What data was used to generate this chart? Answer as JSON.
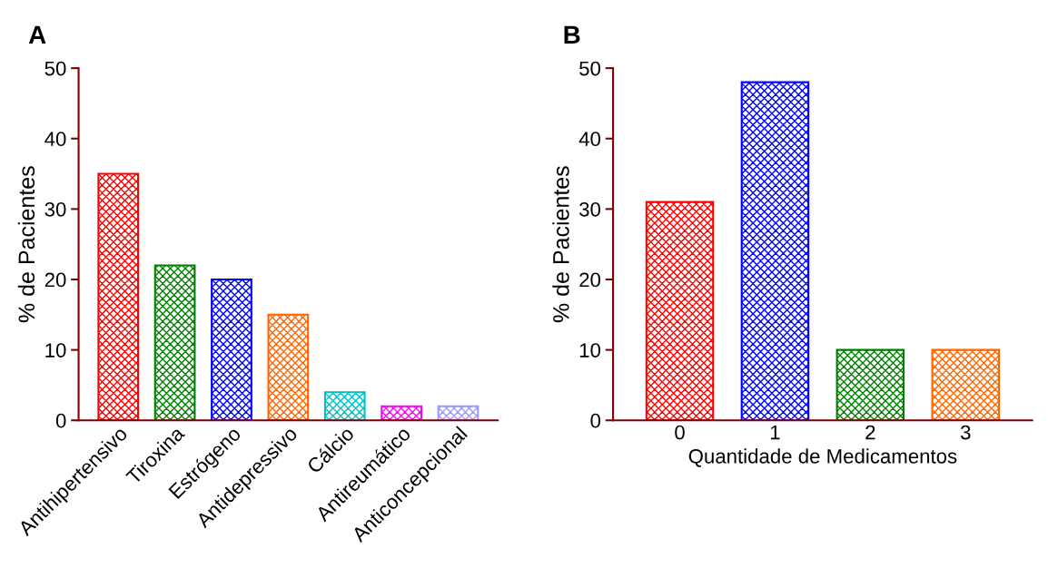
{
  "chart_data": [
    {
      "type": "bar",
      "title": "A",
      "ylabel": "% de Pacientes",
      "categories": [
        "Antihipertensivo",
        "Tiroxina",
        "Estrógeno",
        "Antidepressivo",
        "Cálcio",
        "Antireumático",
        "Anticoncepcional"
      ],
      "values": [
        35,
        22,
        20,
        15,
        4,
        2,
        2
      ],
      "colors": [
        "#ff0000",
        "#008000",
        "#0000ff",
        "#ff6600",
        "#00c0c0",
        "#ff00ff",
        "#9999ff"
      ],
      "ylim": [
        0,
        50
      ],
      "yticks": [
        0,
        10,
        20,
        30,
        40,
        50
      ],
      "grid": false,
      "legend": false
    },
    {
      "type": "bar",
      "title": "B",
      "ylabel": "% de Pacientes",
      "xlabel": "Quantidade de Medicamentos",
      "categories": [
        "0",
        "1",
        "2",
        "3"
      ],
      "values": [
        31,
        48,
        10,
        10
      ],
      "colors": [
        "#ff0000",
        "#0000ff",
        "#008000",
        "#ff6600"
      ],
      "ylim": [
        0,
        50
      ],
      "yticks": [
        0,
        10,
        20,
        30,
        40,
        50
      ],
      "grid": false,
      "legend": false
    }
  ]
}
